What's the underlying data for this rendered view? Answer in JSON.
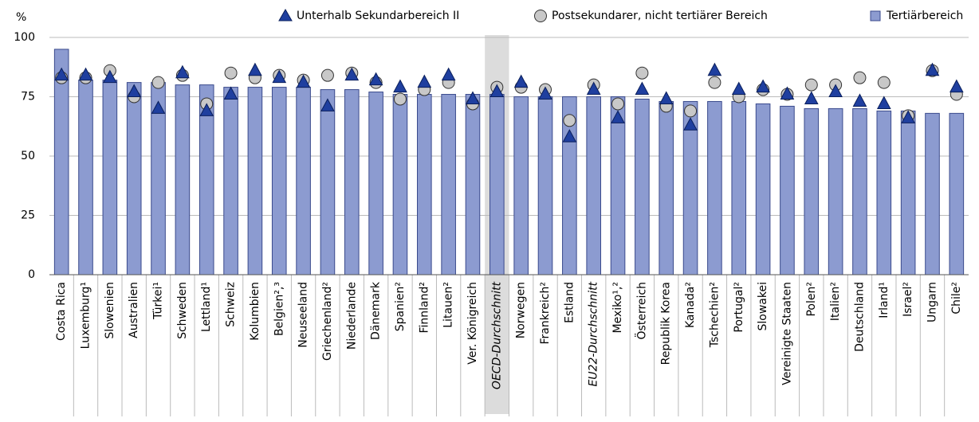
{
  "chart_data": {
    "type": "bar_marker",
    "y_label": "%",
    "categories": [
      "Costa Rica",
      "Luxemburg¹",
      "Slowenien",
      "Australien",
      "Türkei¹",
      "Schweden",
      "Lettland¹",
      "Schweiz",
      "Kolumbien",
      "Belgien²,³",
      "Neuseeland",
      "Griechenland²",
      "Niederlande",
      "Dänemark",
      "Spanien²",
      "Finnland²",
      "Litauen²",
      "Ver. Königreich",
      "OECD-Durchschnitt",
      "Norwegen",
      "Frankreich²",
      "Estland",
      "EU22-Durchschnitt",
      "Mexiko¹,²",
      "Österreich",
      "Republik Korea",
      "Kanada²",
      "Tschechien²",
      "Portugal²",
      "Slowakei",
      "Vereinigte Staaten",
      "Polen²",
      "Italien²",
      "Deutschland",
      "Irland¹",
      "Israel²",
      "Ungarn",
      "Chile²"
    ],
    "highlight_indices": [
      18
    ],
    "italic_indices": [
      18,
      22
    ],
    "series": [
      {
        "name": "Unterhalb Sekundarbereich II",
        "marker": "triangle",
        "color": "#1f3f9f",
        "values": [
          84,
          84,
          83,
          77,
          70,
          85,
          69,
          76,
          86,
          83,
          81,
          71,
          84,
          82,
          79,
          81,
          84,
          74,
          77,
          81,
          76,
          58,
          78,
          66,
          78,
          74,
          63,
          86,
          78,
          79,
          76,
          74,
          77,
          73,
          72,
          66,
          86,
          79
        ]
      },
      {
        "name": "Postsekundarer, nicht tertiärer Bereich",
        "marker": "circle",
        "color": "#c8c8c8",
        "values": [
          83,
          83,
          86,
          75,
          81,
          84,
          72,
          85,
          83,
          84,
          82,
          84,
          85,
          81,
          74,
          78,
          81,
          72,
          79,
          79,
          78,
          65,
          80,
          72,
          85,
          71,
          69,
          81,
          75,
          78,
          76,
          80,
          80,
          83,
          81,
          67,
          86,
          76
        ]
      },
      {
        "name": "Tertiärbereich",
        "marker": "bar",
        "color": "#8c9bd0",
        "values": [
          95,
          82,
          82,
          81,
          81,
          80,
          80,
          79,
          79,
          79,
          79,
          78,
          78,
          77,
          76,
          76,
          76,
          76,
          76,
          75,
          75,
          75,
          75,
          75,
          74,
          73,
          73,
          73,
          73,
          72,
          71,
          70,
          70,
          70,
          69,
          69,
          68,
          68
        ]
      }
    ],
    "ylim": [
      0,
      100
    ],
    "yticks": [
      0,
      25,
      50,
      75,
      100
    ],
    "grid": true
  }
}
